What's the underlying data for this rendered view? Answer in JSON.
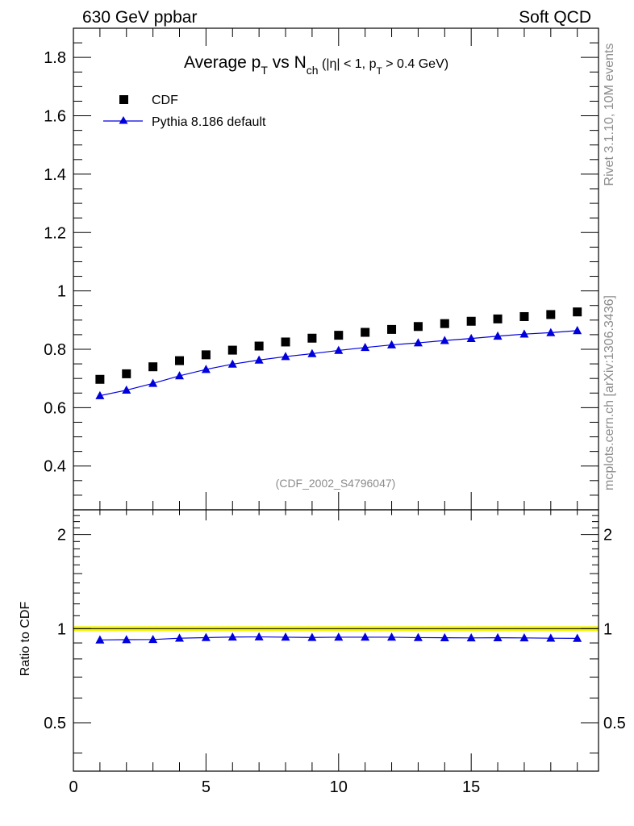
{
  "header": {
    "left": "630 GeV ppbar",
    "right": "Soft QCD"
  },
  "side_labels": {
    "rivet": "Rivet 3.1.10,  10M events",
    "mcplots": "mcplots.cern.ch [arXiv:1306.3436]"
  },
  "chart_data": {
    "type": "scatter",
    "title": {
      "main": "Average p",
      "main_sub": "T",
      "vs": " vs N",
      "vs_sub": "ch",
      "cut_open": " (|η| < 1, p",
      "cut_sub": "T",
      "cut_close": " > 0.4 GeV)"
    },
    "watermark": "(CDF_2002_S4796047)",
    "x": [
      1,
      2,
      3,
      4,
      5,
      6,
      7,
      8,
      9,
      10,
      11,
      12,
      13,
      14,
      15,
      16,
      17,
      18,
      19
    ],
    "series": [
      {
        "name": "CDF",
        "marker": "square",
        "color": "#000000",
        "values": [
          0.697,
          0.716,
          0.74,
          0.761,
          0.781,
          0.797,
          0.811,
          0.825,
          0.838,
          0.848,
          0.858,
          0.868,
          0.878,
          0.888,
          0.896,
          0.904,
          0.912,
          0.919,
          0.928
        ]
      },
      {
        "name": "Pythia 8.186 default",
        "marker": "triangle",
        "color": "#0000dd",
        "values": [
          0.641,
          0.66,
          0.683,
          0.709,
          0.731,
          0.749,
          0.763,
          0.775,
          0.785,
          0.796,
          0.806,
          0.815,
          0.822,
          0.83,
          0.837,
          0.845,
          0.852,
          0.857,
          0.864
        ]
      }
    ],
    "xlim": [
      0,
      19.8
    ],
    "ylim": [
      0.25,
      1.9
    ],
    "y_ticks": [
      0.4,
      0.6,
      0.8,
      1,
      1.2,
      1.4,
      1.6,
      1.8
    ],
    "y_tick_labels": [
      "0.4",
      "0.6",
      "0.8",
      "1",
      "1.2",
      "1.4",
      "1.6",
      "1.8"
    ],
    "x_ticks": [
      0,
      5,
      10,
      15
    ],
    "x_tick_labels": [
      "0",
      "5",
      "10",
      "15"
    ],
    "legend_position": "top-left",
    "grid": false,
    "ratio": {
      "ylabel": "Ratio to CDF",
      "scale": "log",
      "ylim": [
        0.35,
        2.4
      ],
      "y_ticks": [
        0.5,
        1,
        2
      ],
      "y_tick_labels": [
        "0.5",
        "1",
        "2"
      ],
      "band_color": "#f4f400",
      "reference": 1,
      "values": [
        0.92,
        0.922,
        0.923,
        0.932,
        0.936,
        0.94,
        0.941,
        0.939,
        0.937,
        0.939,
        0.939,
        0.939,
        0.936,
        0.935,
        0.934,
        0.935,
        0.934,
        0.932,
        0.931
      ]
    }
  }
}
